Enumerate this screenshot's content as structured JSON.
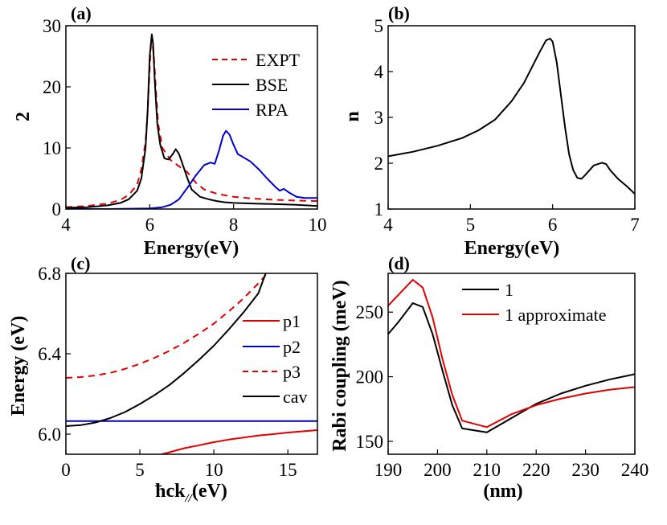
{
  "chart_data": [
    {
      "id": "a",
      "type": "line",
      "panel_label": "(a)",
      "xlabel": "Energy(eV)",
      "ylabel": "2",
      "xlim": [
        4,
        10
      ],
      "ylim": [
        0,
        30
      ],
      "xticks": [
        4,
        6,
        8,
        10
      ],
      "yticks": [
        0,
        10,
        20,
        30
      ],
      "legend_position": "top-right",
      "series": [
        {
          "name": "EXPT",
          "color": "#e00000",
          "dash": true,
          "x": [
            4.0,
            4.5,
            5.0,
            5.3,
            5.5,
            5.7,
            5.8,
            5.9,
            5.95,
            6.0,
            6.03,
            6.05,
            6.1,
            6.15,
            6.2,
            6.3,
            6.5,
            6.7,
            6.9,
            7.1,
            7.3,
            7.6,
            8.0,
            8.5,
            9.0,
            9.5,
            10.0
          ],
          "y": [
            0.3,
            0.5,
            0.9,
            1.5,
            2.3,
            4.0,
            6.5,
            11.0,
            16.0,
            23.0,
            27.0,
            28.2,
            25.0,
            19.0,
            14.0,
            10.0,
            8.0,
            7.0,
            6.0,
            4.3,
            3.2,
            2.5,
            2.0,
            1.7,
            1.5,
            1.4,
            1.3
          ]
        },
        {
          "name": "BSE",
          "color": "#000000",
          "dash": false,
          "x": [
            4.0,
            4.5,
            5.0,
            5.3,
            5.5,
            5.7,
            5.8,
            5.9,
            5.95,
            6.0,
            6.05,
            6.08,
            6.12,
            6.18,
            6.25,
            6.35,
            6.45,
            6.55,
            6.62,
            6.7,
            6.8,
            6.9,
            7.0,
            7.2,
            7.4,
            7.6,
            7.8,
            8.0,
            8.5,
            9.0,
            9.5,
            10.0
          ],
          "y": [
            0.2,
            0.3,
            0.6,
            1.0,
            1.6,
            3.0,
            5.0,
            10.0,
            16.0,
            25.0,
            28.6,
            27.0,
            21.0,
            14.0,
            10.5,
            8.3,
            8.1,
            9.0,
            9.8,
            9.0,
            7.0,
            5.0,
            3.2,
            2.0,
            1.6,
            1.3,
            1.1,
            1.0,
            0.9,
            0.8,
            0.7,
            0.5
          ]
        },
        {
          "name": "RPA",
          "color": "#0000d0",
          "dash": false,
          "x": [
            4.0,
            5.0,
            6.0,
            6.3,
            6.5,
            6.7,
            6.9,
            7.1,
            7.3,
            7.45,
            7.55,
            7.65,
            7.75,
            7.82,
            7.9,
            8.0,
            8.1,
            8.25,
            8.4,
            8.6,
            8.8,
            9.0,
            9.1,
            9.2,
            9.3,
            9.5,
            9.7,
            10.0
          ],
          "y": [
            0.0,
            0.0,
            0.1,
            0.3,
            0.7,
            1.6,
            3.5,
            5.5,
            7.2,
            7.6,
            7.4,
            9.5,
            12.0,
            12.8,
            12.2,
            10.5,
            9.0,
            8.4,
            7.8,
            6.5,
            5.0,
            3.6,
            3.0,
            3.3,
            2.8,
            2.0,
            1.8,
            1.8
          ]
        }
      ]
    },
    {
      "id": "b",
      "type": "line",
      "panel_label": "(b)",
      "xlabel": "Energy(eV)",
      "ylabel": "n",
      "xlim": [
        4,
        7
      ],
      "ylim": [
        1,
        5
      ],
      "xticks": [
        4,
        5,
        6,
        7
      ],
      "yticks": [
        1,
        2,
        3,
        4,
        5
      ],
      "series": [
        {
          "color": "#000000",
          "dash": false,
          "x": [
            4.0,
            4.3,
            4.6,
            4.9,
            5.1,
            5.3,
            5.5,
            5.65,
            5.75,
            5.85,
            5.92,
            5.97,
            6.0,
            6.05,
            6.1,
            6.15,
            6.2,
            6.25,
            6.3,
            6.35,
            6.4,
            6.5,
            6.6,
            6.65,
            6.7,
            6.8,
            6.9,
            7.0
          ],
          "y": [
            2.15,
            2.25,
            2.38,
            2.55,
            2.72,
            2.95,
            3.35,
            3.75,
            4.1,
            4.45,
            4.68,
            4.72,
            4.65,
            4.2,
            3.5,
            2.8,
            2.2,
            1.85,
            1.68,
            1.66,
            1.75,
            1.95,
            2.01,
            1.98,
            1.85,
            1.65,
            1.5,
            1.33
          ]
        }
      ]
    },
    {
      "id": "c",
      "type": "line",
      "panel_label": "(c)",
      "xlabel": "ħck//(eV)",
      "ylabel": "Energy (eV)",
      "xlim": [
        0,
        17
      ],
      "ylim": [
        5.9,
        6.8
      ],
      "xticks": [
        0,
        5,
        10,
        15
      ],
      "yticks": [
        6.0,
        6.4,
        6.8
      ],
      "ytick_labels": [
        "6.0",
        "6.4",
        "6.8"
      ],
      "legend_position": "right",
      "series": [
        {
          "name": "p1",
          "color": "#e00000",
          "dash": false,
          "x": [
            0,
            1,
            2,
            3,
            4,
            5,
            6,
            7,
            8,
            9,
            10,
            11,
            12,
            13,
            14,
            15,
            16,
            17
          ],
          "y": [
            5.83,
            5.833,
            5.838,
            5.847,
            5.86,
            5.875,
            5.89,
            5.91,
            5.93,
            5.945,
            5.96,
            5.973,
            5.983,
            5.993,
            6.0,
            6.008,
            6.014,
            6.02
          ]
        },
        {
          "name": "p2",
          "color": "#0000d0",
          "dash": false,
          "x": [
            0,
            17
          ],
          "y": [
            6.065,
            6.065
          ]
        },
        {
          "name": "p3",
          "color": "#e00000",
          "dash": true,
          "x": [
            0,
            1,
            2,
            3,
            4,
            5,
            6,
            7,
            8,
            9,
            10,
            11,
            12,
            13,
            13.5
          ],
          "y": [
            6.28,
            6.284,
            6.292,
            6.305,
            6.325,
            6.35,
            6.38,
            6.415,
            6.455,
            6.5,
            6.55,
            6.61,
            6.675,
            6.75,
            6.79
          ]
        },
        {
          "name": "cav",
          "color": "#000000",
          "dash": false,
          "x": [
            0,
            1,
            2,
            3,
            4,
            5,
            6,
            7,
            8,
            9,
            10,
            11,
            12,
            13,
            13.5
          ],
          "y": [
            6.04,
            6.045,
            6.058,
            6.08,
            6.11,
            6.15,
            6.195,
            6.245,
            6.305,
            6.37,
            6.44,
            6.52,
            6.605,
            6.7,
            6.8
          ]
        }
      ]
    },
    {
      "id": "d",
      "type": "line",
      "panel_label": "(d)",
      "xlabel": "(nm)",
      "ylabel": "Rabi coupling (meV)",
      "xlim": [
        190,
        240
      ],
      "ylim": [
        140,
        280
      ],
      "xticks": [
        190,
        200,
        210,
        220,
        230,
        240
      ],
      "yticks": [
        150,
        200,
        250
      ],
      "legend_position": "top-right",
      "series": [
        {
          "name": "1",
          "color": "#000000",
          "dash": false,
          "x": [
            190,
            192,
            195,
            197,
            199,
            201,
            203,
            205,
            210,
            215,
            220,
            225,
            230,
            235,
            240
          ],
          "y": [
            233,
            242,
            257,
            254,
            233,
            205,
            178,
            160,
            157,
            168,
            179,
            187,
            193,
            198,
            202
          ]
        },
        {
          "name": "1 approximate",
          "color": "#e00000",
          "dash": false,
          "x": [
            190,
            192,
            195,
            197,
            199,
            201,
            203,
            205,
            210,
            215,
            220,
            225,
            230,
            235,
            240
          ],
          "y": [
            255,
            263,
            275,
            269,
            246,
            214,
            186,
            166,
            161,
            171,
            178,
            183,
            187,
            190,
            192
          ]
        }
      ]
    }
  ]
}
